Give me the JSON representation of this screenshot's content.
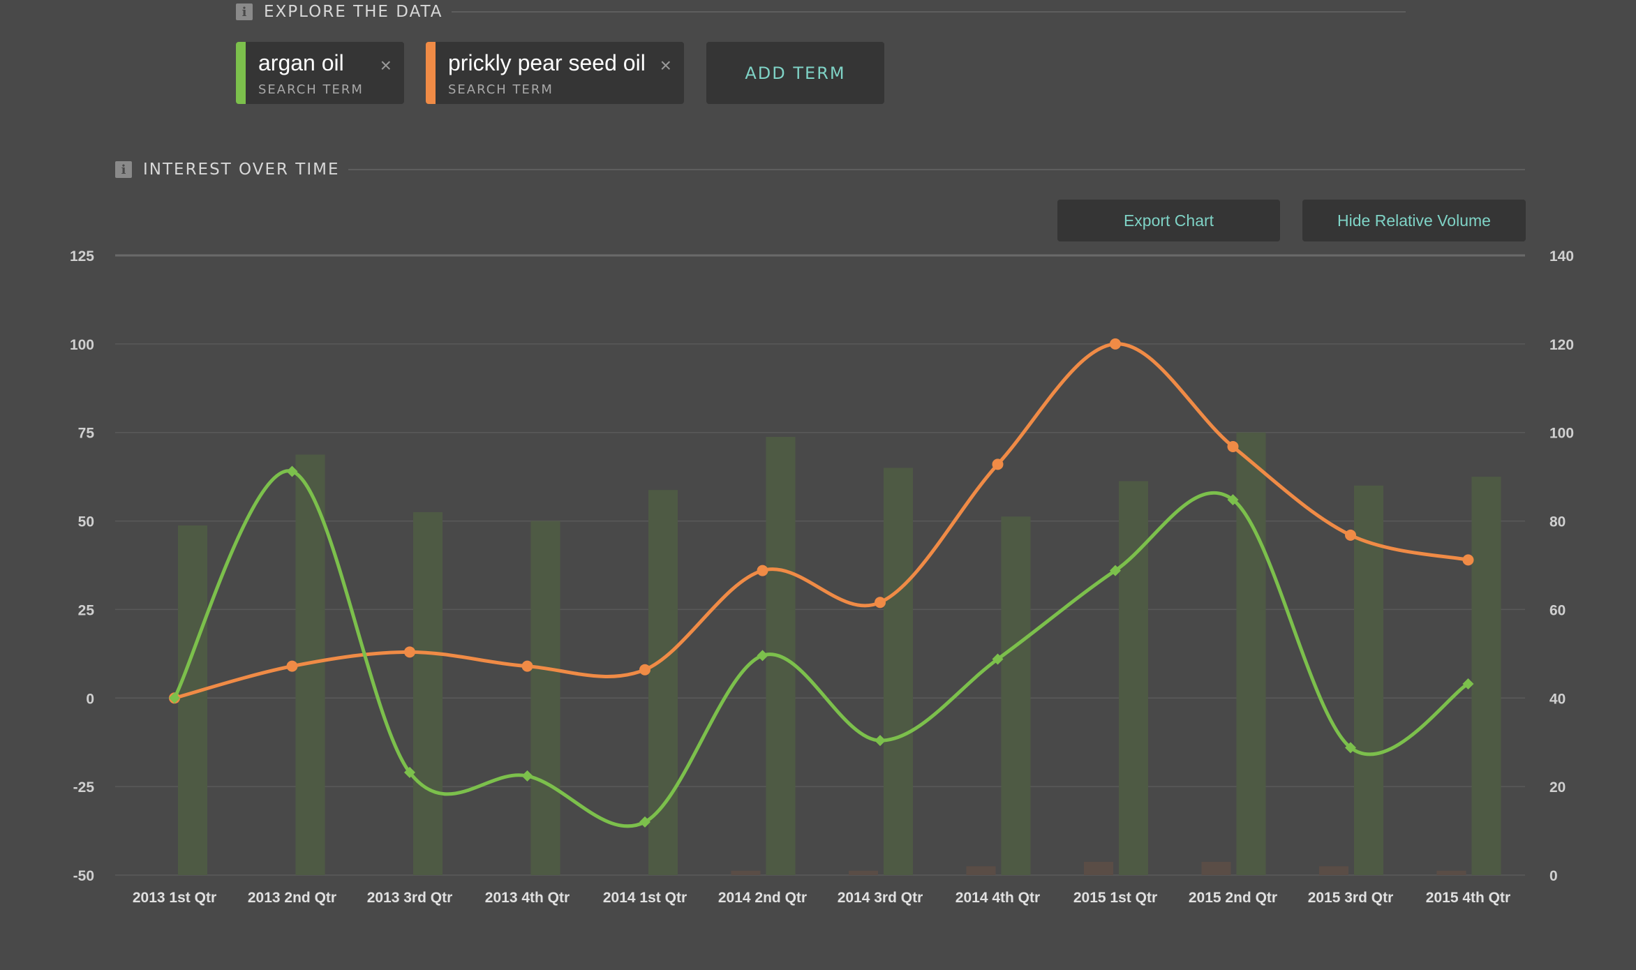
{
  "explore": {
    "title": "EXPLORE THE DATA",
    "info_icon": "i"
  },
  "terms": [
    {
      "name": "argan oil",
      "sub": "SEARCH TERM",
      "color": "#7cc04c",
      "close": "×"
    },
    {
      "name": "prickly pear seed oil",
      "sub": "SEARCH TERM",
      "color": "#f08b46",
      "close": "×"
    }
  ],
  "add_term_label": "ADD TERM",
  "interest": {
    "title": "INTEREST OVER TIME",
    "info_icon": "i"
  },
  "buttons": {
    "export": "Export Chart",
    "hide_volume": "Hide Relative Volume"
  },
  "chart_data": {
    "type": "line",
    "title": "",
    "xlabel": "",
    "ylabel": "",
    "categories": [
      "2013 1st Qtr",
      "2013 2nd Qtr",
      "2013 3rd Qtr",
      "2013 4th Qtr",
      "2014 1st Qtr",
      "2014 2nd Qtr",
      "2014 3rd Qtr",
      "2014 4th Qtr",
      "2015 1st Qtr",
      "2015 2nd Qtr",
      "2015 3rd Qtr",
      "2015 4th Qtr"
    ],
    "y_left": {
      "ylim": [
        -50,
        125
      ],
      "ticks": [
        125,
        100,
        75,
        50,
        25,
        0,
        -25,
        -50
      ]
    },
    "y_right": {
      "ylim": [
        0,
        140
      ],
      "ticks": [
        140,
        120,
        100,
        80,
        60,
        40,
        20,
        0
      ]
    },
    "series": [
      {
        "name": "argan oil",
        "color": "#7cc04c",
        "axis": "left",
        "marker": "diamond",
        "values": [
          0,
          64,
          -21,
          -22,
          -35,
          12,
          -12,
          11,
          36,
          56,
          -14,
          4
        ]
      },
      {
        "name": "prickly pear seed oil",
        "color": "#f08b46",
        "axis": "left",
        "marker": "circle",
        "values": [
          0,
          9,
          13,
          9,
          8,
          36,
          27,
          66,
          100,
          71,
          46,
          39
        ]
      }
    ],
    "volume_bars": [
      {
        "series": "argan oil",
        "color": "#4e5a44",
        "axis": "right",
        "values": [
          79,
          95,
          82,
          80,
          87,
          99,
          92,
          81,
          89,
          100,
          88,
          90
        ]
      },
      {
        "series": "prickly pear seed oil",
        "color": "#5a4d46",
        "axis": "right",
        "values": [
          0,
          0,
          0,
          0,
          0,
          1,
          1,
          2,
          3,
          3,
          2,
          1
        ]
      }
    ],
    "grid": true,
    "legend": "none"
  }
}
